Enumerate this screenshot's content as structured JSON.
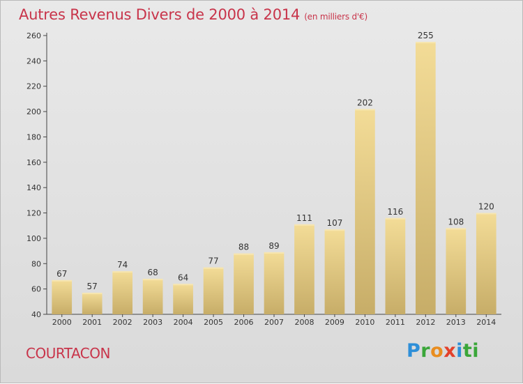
{
  "title": "Autres Revenus Divers de 2000 à 2014",
  "subtitle": "(en milliers d'€)",
  "place": "COURTACON",
  "logo_letters": [
    "P",
    "r",
    "o",
    "x",
    "i",
    "ti"
  ],
  "chart_data": {
    "type": "bar",
    "categories": [
      "2000",
      "2001",
      "2002",
      "2003",
      "2004",
      "2005",
      "2006",
      "2007",
      "2008",
      "2009",
      "2010",
      "2011",
      "2012",
      "2013",
      "2014"
    ],
    "values": [
      67,
      57,
      74,
      68,
      64,
      77,
      88,
      89,
      111,
      107,
      202,
      116,
      255,
      108,
      120
    ],
    "ylim": [
      40,
      260
    ],
    "yticks": [
      40,
      60,
      80,
      100,
      120,
      140,
      160,
      180,
      200,
      220,
      240,
      260
    ],
    "grid": false,
    "legend": "none",
    "bar_color_light": "#f3dc97",
    "bar_color_dark": "#c7ad68"
  }
}
